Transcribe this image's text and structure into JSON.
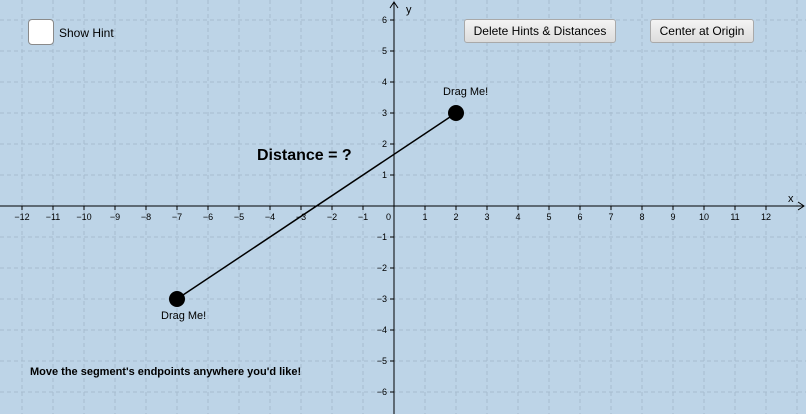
{
  "controls": {
    "show_hint_label": "Show Hint",
    "show_hint_checked": false,
    "delete_button_label": "Delete Hints & Distances",
    "center_button_label": "Center at Origin"
  },
  "graph": {
    "x_axis_label": "x",
    "y_axis_label": "y",
    "x_range": [
      -12,
      12
    ],
    "y_range": [
      -6,
      6
    ],
    "grid": true,
    "colors": {
      "background": "#bdd4e7",
      "grid": "#a6bccf",
      "axis": "#000000",
      "segment": "#000000",
      "point": "#000000"
    }
  },
  "segment": {
    "endpoint_a": {
      "x": 2,
      "y": 3
    },
    "endpoint_b": {
      "x": -7,
      "y": -3
    }
  },
  "labels": {
    "distance": "Distance = ?",
    "drag_top": "Drag Me!",
    "drag_bottom": "Drag Me!",
    "instructions": "Move the segment's endpoints anywhere you'd like!"
  }
}
